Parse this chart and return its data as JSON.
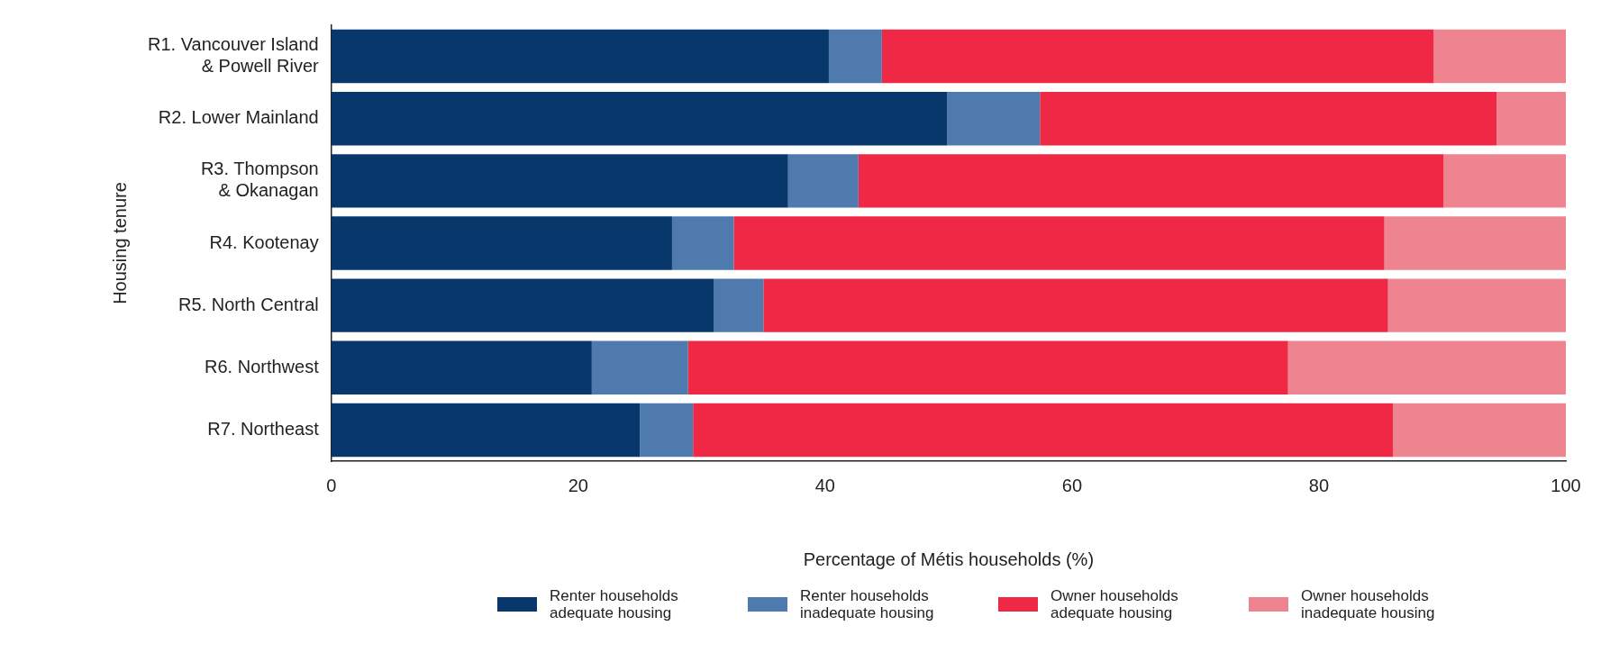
{
  "chart_data": {
    "type": "bar",
    "orientation": "horizontal",
    "stacked": true,
    "ylabel": "Housing tenure",
    "xlabel": "Percentage of Métis households (%)",
    "categories": [
      "R1. Vancouver Island & Powell River",
      "R2. Lower Mainland",
      "R3. Thompson & Okanagan",
      "R4. Kootenay",
      "R5. North Central",
      "R6. Northwest",
      "R7. Northeast"
    ],
    "series": [
      {
        "name": "Renter households adequate housing",
        "color": "#08376b",
        "values": [
          40.3,
          49.9,
          37.0,
          27.6,
          31.0,
          21.1,
          25.0
        ]
      },
      {
        "name": "Renter households inadequate housing",
        "color": "#4f7aae",
        "values": [
          4.3,
          7.5,
          5.7,
          5.0,
          4.0,
          7.8,
          4.3
        ]
      },
      {
        "name": "Owner households adequate housing",
        "color": "#ee2845",
        "values": [
          44.7,
          37.0,
          47.4,
          52.7,
          50.6,
          48.6,
          56.7
        ]
      },
      {
        "name": "Owner households inadequate housing",
        "color": "#ee8490",
        "values": [
          10.7,
          5.6,
          9.9,
          14.7,
          14.4,
          22.5,
          14.0
        ]
      }
    ],
    "xlim": [
      0,
      100
    ],
    "xticks": [
      0,
      20,
      40,
      60,
      80,
      100
    ],
    "grid": false,
    "legend": "bottom"
  }
}
